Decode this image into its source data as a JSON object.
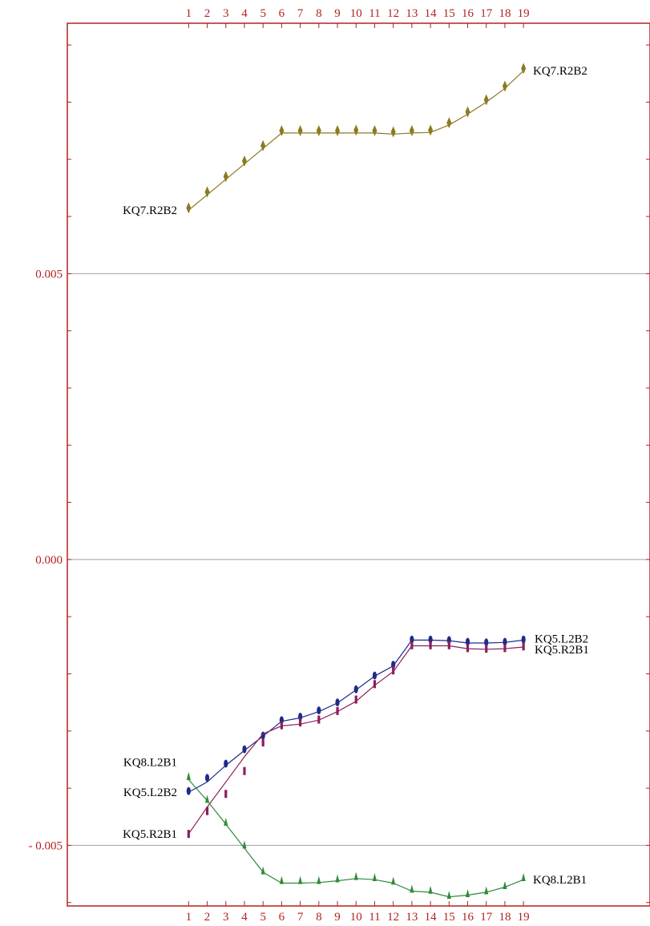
{
  "chart_data": {
    "type": "line",
    "x": [
      1,
      2,
      3,
      4,
      5,
      6,
      7,
      8,
      9,
      10,
      11,
      12,
      13,
      14,
      15,
      16,
      17,
      18,
      19
    ],
    "x_tick_labels": [
      "1",
      "2",
      "3",
      "4",
      "5",
      "6",
      "7",
      "8",
      "9",
      "10",
      "11",
      "12",
      "13",
      "14",
      "15",
      "16",
      "17",
      "18",
      "19"
    ],
    "y_tick_labels": [
      {
        "value": 0.005,
        "label": "0.005"
      },
      {
        "value": 0.0,
        "label": "0.000"
      },
      {
        "value": -0.005,
        "label": "- 0.005"
      }
    ],
    "ylim": [
      -0.00606,
      0.00938
    ],
    "xlim": [
      -5.52,
      25.8
    ],
    "grid": "horizontal",
    "legend": "none",
    "axis_color": "#b22222",
    "series": [
      {
        "name": "KQ7.R2B2",
        "start_label": "KQ7.R2B2",
        "end_label": "KQ7.R2B2",
        "color": "#8b7a1f",
        "marker": "diamond",
        "line": [
          0.00611,
          0.00638,
          0.00665,
          0.00692,
          0.00719,
          0.00746,
          0.00746,
          0.00746,
          0.00746,
          0.00746,
          0.00746,
          0.00744,
          0.00746,
          0.00747,
          0.0076,
          0.00779,
          0.008,
          0.00824,
          0.00855
        ],
        "markers": [
          0.00615,
          0.00643,
          0.0067,
          0.00697,
          0.00724,
          0.0075,
          0.0075,
          0.0075,
          0.0075,
          0.00751,
          0.0075,
          0.00748,
          0.0075,
          0.00751,
          0.00764,
          0.00783,
          0.00804,
          0.00828,
          0.00859
        ]
      },
      {
        "name": "KQ5.L2B2",
        "start_label": "KQ5.L2B2",
        "end_label": "KQ5.L2B2",
        "color": "#1f2b8b",
        "marker": "ellipse",
        "line": [
          -0.00407,
          -0.00389,
          -0.0036,
          -0.00334,
          -0.00309,
          -0.00283,
          -0.00277,
          -0.00266,
          -0.00251,
          -0.00228,
          -0.00204,
          -0.00186,
          -0.00141,
          -0.00141,
          -0.00142,
          -0.00146,
          -0.00146,
          -0.00145,
          -0.00141
        ],
        "markers": [
          -0.00405,
          -0.00382,
          -0.00357,
          -0.00332,
          -0.00308,
          -0.00281,
          -0.00275,
          -0.00264,
          -0.0025,
          -0.00227,
          -0.00203,
          -0.00184,
          -0.0014,
          -0.0014,
          -0.00141,
          -0.00144,
          -0.00145,
          -0.00144,
          -0.0014
        ]
      },
      {
        "name": "KQ5.R2B1",
        "start_label": "KQ5.R2B1",
        "end_label": "KQ5.R2B1",
        "color": "#8b1f5c",
        "marker": "bar",
        "line": [
          -0.0048,
          -0.00433,
          -0.00389,
          -0.00345,
          -0.00305,
          -0.00291,
          -0.00288,
          -0.00281,
          -0.00266,
          -0.00248,
          -0.0022,
          -0.00196,
          -0.00151,
          -0.00151,
          -0.00151,
          -0.00156,
          -0.00157,
          -0.00156,
          -0.00153
        ],
        "markers": [
          -0.0048,
          -0.0044,
          -0.0041,
          -0.0037,
          -0.0032,
          -0.0029,
          -0.00285,
          -0.0028,
          -0.00265,
          -0.00245,
          -0.00218,
          -0.00194,
          -0.0015,
          -0.0015,
          -0.0015,
          -0.00155,
          -0.00156,
          -0.00155,
          -0.00152
        ]
      },
      {
        "name": "KQ8.L2B1",
        "start_label": "KQ8.L2B1",
        "end_label": "KQ8.L2B1",
        "color": "#2e8b3a",
        "marker": "triangle",
        "line": [
          -0.00385,
          -0.00422,
          -0.00463,
          -0.00505,
          -0.00547,
          -0.00566,
          -0.00566,
          -0.00565,
          -0.00562,
          -0.00558,
          -0.0056,
          -0.00566,
          -0.0058,
          -0.00582,
          -0.0059,
          -0.00587,
          -0.00582,
          -0.00573,
          -0.0056
        ],
        "markers": [
          -0.0038,
          -0.0042,
          -0.0046,
          -0.005,
          -0.00545,
          -0.00562,
          -0.00562,
          -0.00562,
          -0.00559,
          -0.00555,
          -0.00557,
          -0.00563,
          -0.00577,
          -0.00579,
          -0.00588,
          -0.00585,
          -0.0058,
          -0.00571,
          -0.00557
        ]
      }
    ]
  }
}
